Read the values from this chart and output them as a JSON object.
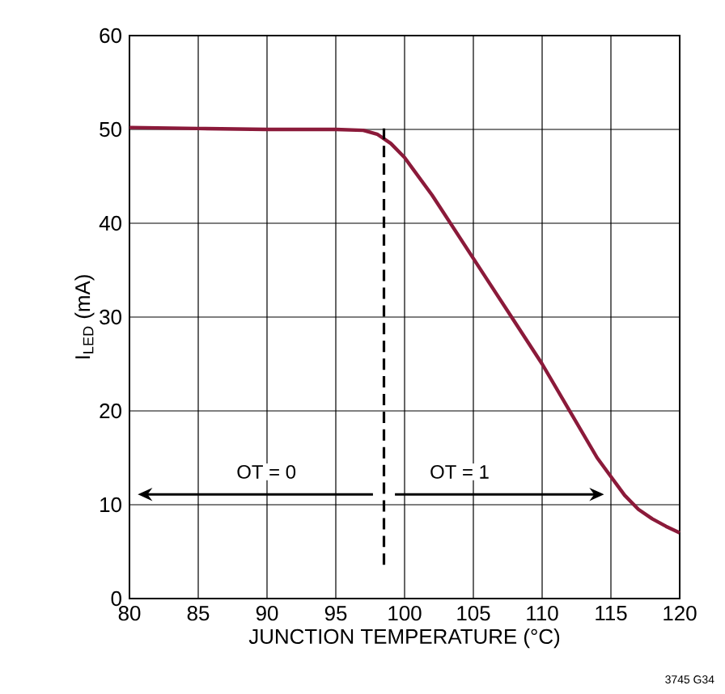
{
  "chart_data": {
    "type": "line",
    "xlabel": "JUNCTION TEMPERATURE (°C)",
    "ylabel": "I$_{LED}$ (mA)",
    "xlim": [
      80,
      120
    ],
    "xticks": [
      80,
      85,
      90,
      95,
      100,
      105,
      110,
      115,
      120
    ],
    "ylim": [
      0,
      60
    ],
    "yticks": [
      0,
      10,
      20,
      30,
      40,
      50,
      60
    ],
    "grid": true,
    "series": [
      {
        "color": "#8b1a3a",
        "x": [
          80,
          85,
          90,
          95,
          97,
          98,
          99,
          100,
          102,
          104,
          106,
          108,
          110,
          112,
          114,
          115,
          116,
          117,
          118,
          119,
          120
        ],
        "values": [
          50.2,
          50.1,
          50,
          50,
          49.9,
          49.5,
          48.5,
          47,
          43,
          38.5,
          34,
          29.5,
          25,
          20,
          15,
          13,
          11,
          9.5,
          8.5,
          7.7,
          7
        ]
      }
    ],
    "ref_lines": [
      {
        "axis": "x",
        "value": 98.5,
        "color": "#000000",
        "line_style": "dashed"
      }
    ],
    "annotations": [
      "OT = 0",
      "OT = 1",
      "3745 G34"
    ]
  }
}
